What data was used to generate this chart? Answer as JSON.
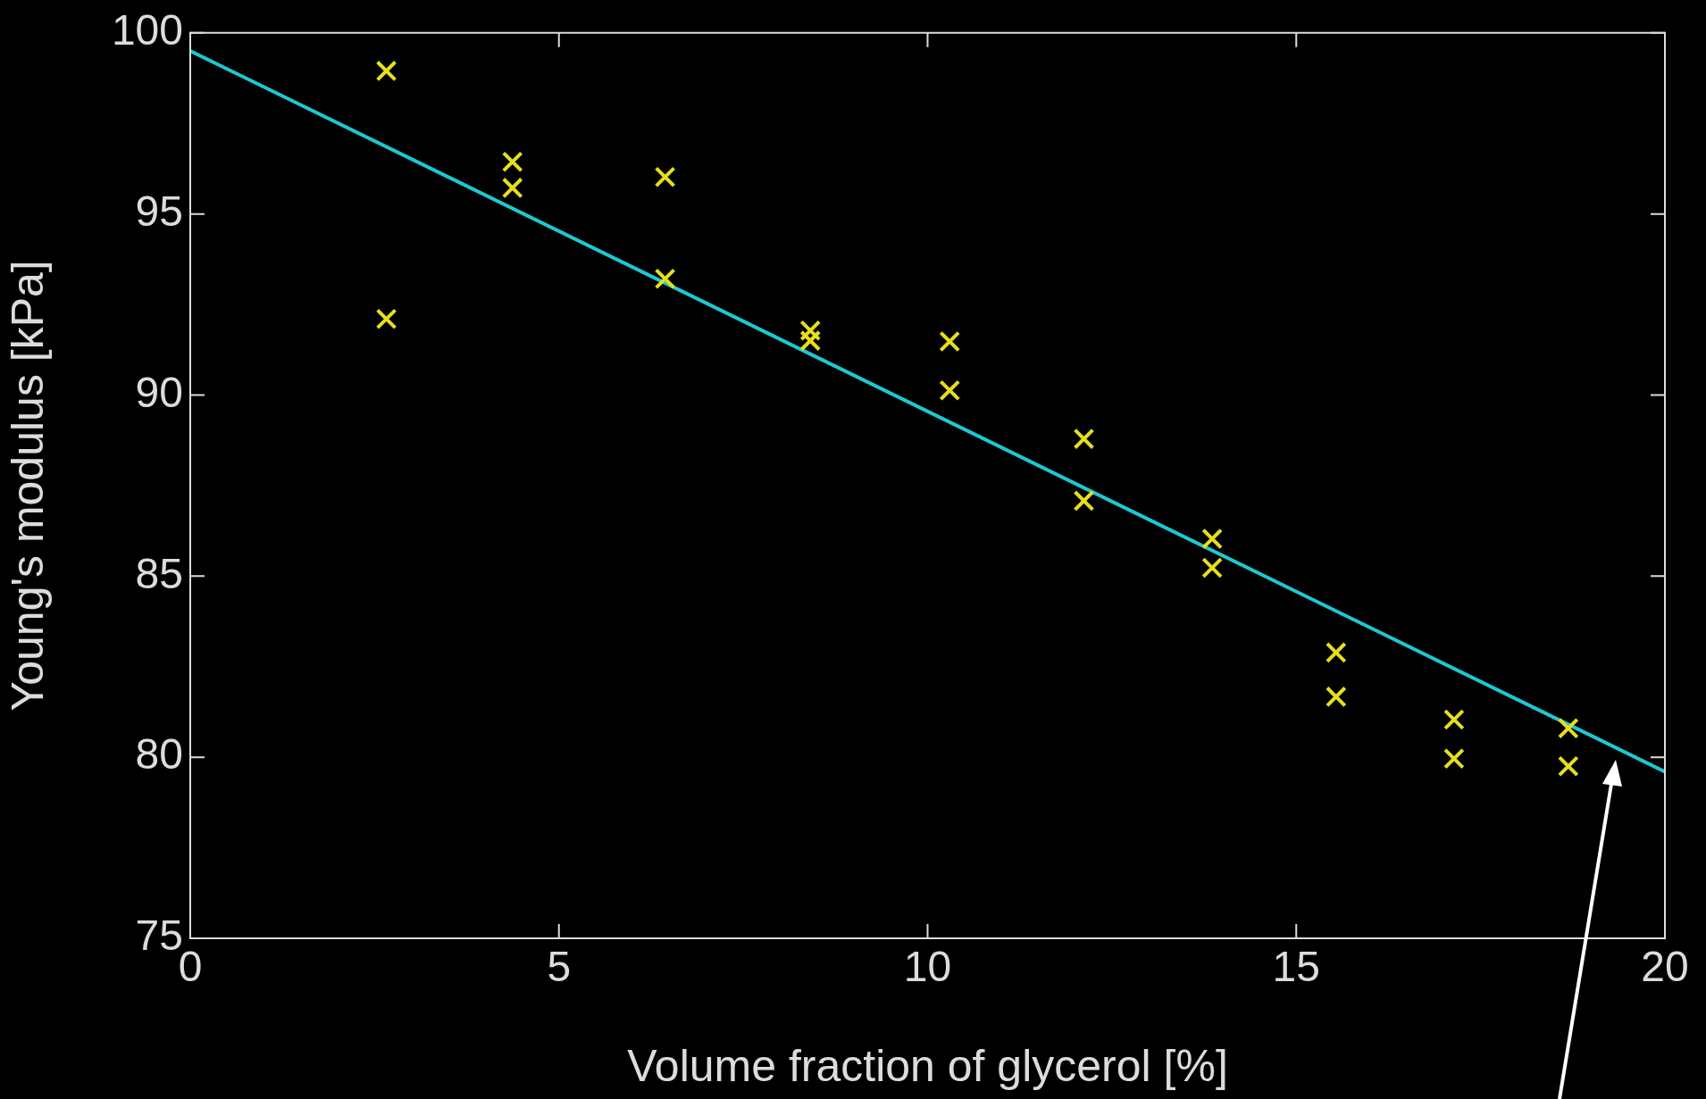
{
  "chart_data": {
    "type": "scatter",
    "xlabel": "Volume fraction of glycerol [%]",
    "ylabel": "Young's modulus [kPa]",
    "xlim": [
      0,
      20
    ],
    "ylim": [
      75,
      100
    ],
    "xticks": [
      0,
      5,
      10,
      15,
      20
    ],
    "yticks": [
      75,
      80,
      85,
      90,
      95,
      100
    ],
    "legend": false,
    "series": [
      {
        "marker": "cross",
        "color": "#e6de1e",
        "x": [
          2.66,
          2.66,
          4.37,
          4.37,
          6.44,
          6.44,
          8.41,
          8.41,
          10.3,
          10.3,
          12.12,
          12.12,
          13.86,
          13.86,
          15.54,
          15.54,
          17.14,
          17.14,
          18.69,
          18.69
        ],
        "values": [
          98.95,
          92.1,
          96.44,
          95.72,
          96.02,
          93.21,
          91.78,
          91.5,
          91.48,
          90.13,
          88.79,
          87.08,
          86.03,
          85.23,
          82.89,
          81.67,
          81.04,
          79.96,
          80.8,
          79.75
        ]
      },
      {
        "type": "line",
        "marker": "none",
        "color": "#1ec8d2",
        "x": [
          0,
          20
        ],
        "values": [
          99.5,
          79.6
        ]
      }
    ]
  }
}
